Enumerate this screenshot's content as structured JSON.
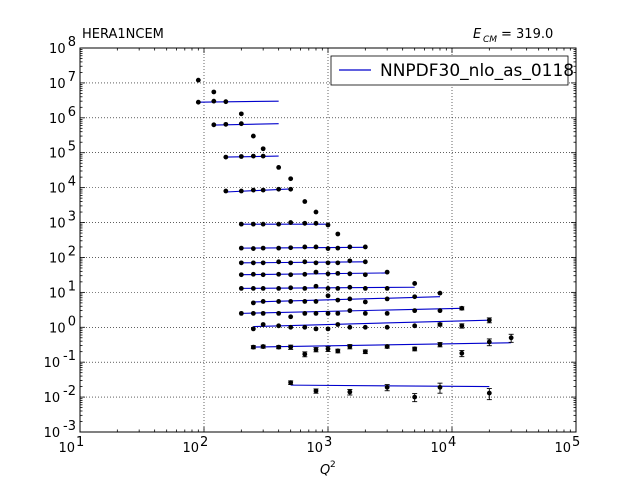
{
  "chart_data": {
    "type": "scatter",
    "title_left": "HERA1NCEM",
    "title_right_symbol": "E",
    "title_right_sub": "CM",
    "title_right_value": "= 319.0",
    "xlabel_symbol": "Q",
    "xlabel_sup": "2",
    "x_scale": "log",
    "y_scale": "log",
    "xlim": [
      10,
      100000
    ],
    "ylim": [
      0.001,
      100000000
    ],
    "x_ticks": [
      {
        "value": 10,
        "base": "10",
        "exp": "1"
      },
      {
        "value": 100,
        "base": "10",
        "exp": "2"
      },
      {
        "value": 1000,
        "base": "10",
        "exp": "3"
      },
      {
        "value": 10000,
        "base": "10",
        "exp": "4"
      },
      {
        "value": 100000,
        "base": "10",
        "exp": "5"
      }
    ],
    "y_ticks": [
      {
        "value": 0.001,
        "base": "10",
        "exp": "-3"
      },
      {
        "value": 0.01,
        "base": "10",
        "exp": "-2"
      },
      {
        "value": 0.1,
        "base": "10",
        "exp": "-1"
      },
      {
        "value": 1,
        "base": "10",
        "exp": "0"
      },
      {
        "value": 10,
        "base": "10",
        "exp": "1"
      },
      {
        "value": 100,
        "base": "10",
        "exp": "2"
      },
      {
        "value": 1000,
        "base": "10",
        "exp": "3"
      },
      {
        "value": 10000,
        "base": "10",
        "exp": "4"
      },
      {
        "value": 100000,
        "base": "10",
        "exp": "5"
      },
      {
        "value": 1000000,
        "base": "10",
        "exp": "6"
      },
      {
        "value": 10000000,
        "base": "10",
        "exp": "7"
      },
      {
        "value": 100000000,
        "base": "10",
        "exp": "8"
      }
    ],
    "grid": true,
    "legend": {
      "position": "top-right",
      "label": "NNPDF30_nlo_as_0118",
      "color": "#0000cc"
    },
    "colors": {
      "theory": "#0000cc",
      "data": "#000000"
    },
    "series": [
      {
        "name": "NNPDF30_nlo_as_0118",
        "bins": [
          {
            "x": [
              90,
              400
            ],
            "y": [
              2800000.0,
              3000000.0
            ],
            "points": [
              [
                90,
                2800000.0,
                0.04
              ],
              [
                120,
                3000000.0,
                0.04
              ],
              [
                150,
                2900000.0,
                0.04
              ]
            ]
          },
          {
            "x": [
              120,
              400
            ],
            "y": [
              620000.0,
              680000.0
            ],
            "points": [
              [
                120,
                630000.0,
                0.04
              ],
              [
                150,
                650000.0,
                0.04
              ],
              [
                200,
                680000.0,
                0.04
              ]
            ]
          },
          {
            "x": [
              150,
              400
            ],
            "y": [
              75000.0,
              80000.0
            ],
            "points": [
              [
                150,
                75000.0,
                0.04
              ],
              [
                200,
                78000.0,
                0.04
              ],
              [
                250,
                80000.0,
                0.04
              ],
              [
                300,
                80000.0,
                0.04
              ]
            ]
          },
          {
            "x": [
              150,
              500
            ],
            "y": [
              7500.0,
              9200.0
            ],
            "points": [
              [
                150,
                8000.0,
                0.04
              ],
              [
                200,
                8000.0,
                0.04
              ],
              [
                250,
                8500.0,
                0.04
              ],
              [
                300,
                8500.0,
                0.04
              ],
              [
                400,
                9000.0,
                0.04
              ],
              [
                500,
                9000.0,
                0.04
              ]
            ]
          },
          {
            "x": [
              200,
              1000
            ],
            "y": [
              900,
              900
            ],
            "points": [
              [
                200,
                900,
                0.04
              ],
              [
                250,
                900,
                0.04
              ],
              [
                300,
                900,
                0.04
              ],
              [
                400,
                900,
                0.04
              ],
              [
                500,
                1000,
                0.04
              ],
              [
                650,
                950,
                0.04
              ],
              [
                800,
                950,
                0.04
              ],
              [
                1000,
                850,
                0.04
              ]
            ]
          },
          {
            "x": [
              200,
              2000
            ],
            "y": [
              185,
              195
            ],
            "points": [
              [
                200,
                185,
                0.05
              ],
              [
                250,
                180,
                0.05
              ],
              [
                300,
                185,
                0.05
              ],
              [
                400,
                185,
                0.05
              ],
              [
                500,
                190,
                0.05
              ],
              [
                650,
                200,
                0.05
              ],
              [
                800,
                200,
                0.05
              ],
              [
                1000,
                180,
                0.05
              ],
              [
                1200,
                185,
                0.05
              ],
              [
                1500,
                200,
                0.05
              ],
              [
                2000,
                200,
                0.05
              ]
            ]
          },
          {
            "x": [
              200,
              2000
            ],
            "y": [
              70,
              75
            ],
            "points": [
              [
                200,
                70,
                0.05
              ],
              [
                250,
                70,
                0.05
              ],
              [
                300,
                70,
                0.05
              ],
              [
                400,
                75,
                0.05
              ],
              [
                500,
                70,
                0.05
              ],
              [
                650,
                75,
                0.05
              ],
              [
                800,
                70,
                0.05
              ],
              [
                1000,
                70,
                0.05
              ],
              [
                1200,
                70,
                0.05
              ],
              [
                1500,
                80,
                0.05
              ],
              [
                2000,
                75,
                0.05
              ]
            ]
          },
          {
            "x": [
              200,
              3000
            ],
            "y": [
              32,
              36
            ],
            "points": [
              [
                200,
                32,
                0.05
              ],
              [
                250,
                33,
                0.05
              ],
              [
                300,
                32,
                0.05
              ],
              [
                400,
                33,
                0.05
              ],
              [
                500,
                32,
                0.05
              ],
              [
                650,
                33,
                0.05
              ],
              [
                800,
                38,
                0.05
              ],
              [
                1000,
                34,
                0.05
              ],
              [
                1200,
                35,
                0.05
              ],
              [
                1500,
                34,
                0.05
              ],
              [
                2000,
                32,
                0.05
              ],
              [
                3000,
                38,
                0.05
              ]
            ]
          },
          {
            "x": [
              200,
              5000
            ],
            "y": [
              13,
              14
            ],
            "points": [
              [
                200,
                13,
                0.05
              ],
              [
                250,
                13,
                0.05
              ],
              [
                300,
                13,
                0.05
              ],
              [
                400,
                13,
                0.05
              ],
              [
                500,
                13.5,
                0.05
              ],
              [
                650,
                13,
                0.05
              ],
              [
                800,
                15,
                0.05
              ],
              [
                1000,
                13,
                0.05
              ],
              [
                1200,
                13,
                0.05
              ],
              [
                1500,
                14,
                0.05
              ],
              [
                2000,
                13,
                0.05
              ],
              [
                3000,
                13,
                0.05
              ],
              [
                5000,
                18,
                0.08
              ]
            ]
          },
          {
            "x": [
              250,
              8000
            ],
            "y": [
              5.3,
              7.5
            ],
            "points": [
              [
                250,
                5.0,
                0.06
              ],
              [
                300,
                5.5,
                0.06
              ],
              [
                400,
                5.5,
                0.06
              ],
              [
                500,
                5.5,
                0.06
              ],
              [
                650,
                5.5,
                0.06
              ],
              [
                800,
                5.5,
                0.06
              ],
              [
                1000,
                8.0,
                0.06
              ],
              [
                1200,
                6.0,
                0.06
              ],
              [
                1500,
                6.5,
                0.06
              ],
              [
                2000,
                5.3,
                0.06
              ],
              [
                3000,
                6.5,
                0.06
              ],
              [
                5000,
                7.5,
                0.08
              ],
              [
                8000,
                9.5,
                0.08
              ]
            ]
          },
          {
            "x": [
              200,
              12000
            ],
            "y": [
              2.5,
              3.5
            ],
            "points": [
              [
                200,
                2.5,
                0.06
              ],
              [
                250,
                2.5,
                0.06
              ],
              [
                300,
                2.5,
                0.06
              ],
              [
                400,
                2.5,
                0.06
              ],
              [
                500,
                2.0,
                0.06
              ],
              [
                650,
                2.5,
                0.06
              ],
              [
                800,
                2.5,
                0.06
              ],
              [
                1000,
                2.5,
                0.06
              ],
              [
                1200,
                2.5,
                0.06
              ],
              [
                1500,
                3.0,
                0.06
              ],
              [
                2000,
                2.5,
                0.06
              ],
              [
                3000,
                2.5,
                0.06
              ],
              [
                5000,
                3.0,
                0.08
              ],
              [
                8000,
                3.0,
                0.08
              ],
              [
                12000,
                3.5,
                0.1
              ]
            ]
          },
          {
            "x": [
              250,
              20000
            ],
            "y": [
              1.05,
              1.6
            ],
            "points": [
              [
                250,
                0.9,
                0.08
              ],
              [
                300,
                1.2,
                0.08
              ],
              [
                400,
                1.1,
                0.08
              ],
              [
                500,
                1.0,
                0.08
              ],
              [
                650,
                1.0,
                0.08
              ],
              [
                800,
                0.9,
                0.08
              ],
              [
                1000,
                0.9,
                0.08
              ],
              [
                1200,
                1.2,
                0.08
              ],
              [
                1500,
                1.0,
                0.08
              ],
              [
                2000,
                1.0,
                0.08
              ],
              [
                3000,
                1.0,
                0.08
              ],
              [
                5000,
                1.1,
                0.08
              ],
              [
                8000,
                1.2,
                0.1
              ],
              [
                12000,
                1.1,
                0.14
              ],
              [
                20000,
                1.6,
                0.16
              ]
            ]
          },
          {
            "x": [
              250,
              30000
            ],
            "y": [
              0.27,
              0.36
            ],
            "points": [
              [
                250,
                0.27,
                0.1
              ],
              [
                300,
                0.28,
                0.1
              ],
              [
                400,
                0.27,
                0.1
              ],
              [
                500,
                0.27,
                0.14
              ],
              [
                650,
                0.17,
                0.16
              ],
              [
                800,
                0.23,
                0.14
              ],
              [
                1000,
                0.24,
                0.16
              ],
              [
                1200,
                0.21,
                0.12
              ],
              [
                1500,
                0.28,
                0.14
              ],
              [
                2000,
                0.2,
                0.12
              ],
              [
                3000,
                0.28,
                0.1
              ],
              [
                5000,
                0.24,
                0.12
              ],
              [
                8000,
                0.32,
                0.14
              ],
              [
                12000,
                0.18,
                0.2
              ],
              [
                20000,
                0.38,
                0.22
              ],
              [
                30000,
                0.5,
                0.26
              ]
            ]
          },
          {
            "x": [
              500,
              20000
            ],
            "y": [
              0.022,
              0.02
            ],
            "points": [
              [
                500,
                0.026,
                0.12
              ],
              [
                800,
                0.015,
                0.14
              ],
              [
                1500,
                0.014,
                0.18
              ],
              [
                3000,
                0.019,
                0.2
              ],
              [
                5000,
                0.01,
                0.26
              ],
              [
                8000,
                0.019,
                0.32
              ],
              [
                20000,
                0.013,
                0.35
              ]
            ]
          }
        ]
      }
    ],
    "highest_point": {
      "x": 90,
      "y": 12000000.0
    },
    "top_ladder": [
      [
        90,
        12000000.0
      ],
      [
        120,
        5500000.0
      ],
      [
        200,
        1300000.0
      ],
      [
        250,
        300000.0
      ],
      [
        300,
        130000.0
      ],
      [
        400,
        38000.0
      ],
      [
        500,
        18000.0
      ],
      [
        650,
        4000.0
      ],
      [
        800,
        2000.0
      ],
      [
        1200,
        470.0
      ]
    ]
  }
}
